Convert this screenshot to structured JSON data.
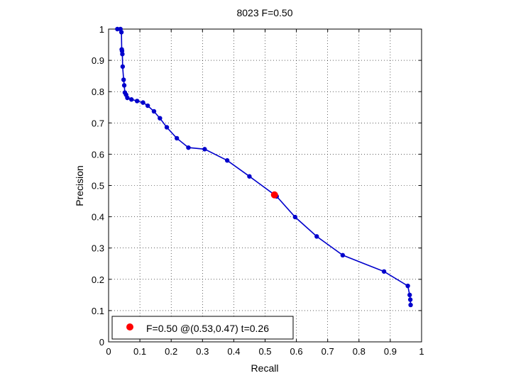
{
  "chart_data": {
    "type": "line",
    "title": "8023 F=0.50",
    "xlabel": "Recall",
    "ylabel": "Precision",
    "xlim": [
      0,
      1
    ],
    "ylim": [
      0,
      1
    ],
    "grid": true,
    "xticks": [
      0,
      0.1,
      0.2,
      0.3,
      0.4,
      0.5,
      0.6,
      0.7,
      0.8,
      0.9,
      1
    ],
    "yticks": [
      0,
      0.1,
      0.2,
      0.3,
      0.4,
      0.5,
      0.6,
      0.7,
      0.8,
      0.9,
      1
    ],
    "xtick_labels": [
      "0",
      "0.1",
      "0.2",
      "0.3",
      "0.4",
      "0.5",
      "0.6",
      "0.7",
      "0.8",
      "0.9",
      "1"
    ],
    "ytick_labels": [
      "0",
      "0.1",
      "0.2",
      "0.3",
      "0.4",
      "0.5",
      "0.6",
      "0.7",
      "0.8",
      "0.9",
      "1"
    ],
    "series": [
      {
        "color": "#0000cc",
        "x": [
          0.028,
          0.038,
          0.041,
          0.042,
          0.043,
          0.044,
          0.045,
          0.048,
          0.05,
          0.052,
          0.056,
          0.06,
          0.073,
          0.091,
          0.11,
          0.125,
          0.145,
          0.164,
          0.186,
          0.218,
          0.255,
          0.307,
          0.379,
          0.45,
          0.537,
          0.596,
          0.665,
          0.748,
          0.88,
          0.956,
          0.962,
          0.964,
          0.965
        ],
        "y": [
          1.0,
          1.0,
          0.99,
          0.935,
          0.93,
          0.92,
          0.88,
          0.838,
          0.82,
          0.797,
          0.79,
          0.78,
          0.775,
          0.77,
          0.765,
          0.755,
          0.737,
          0.715,
          0.686,
          0.651,
          0.621,
          0.616,
          0.58,
          0.529,
          0.465,
          0.399,
          0.337,
          0.277,
          0.225,
          0.179,
          0.15,
          0.135,
          0.118
        ]
      }
    ],
    "marker": {
      "x": 0.53,
      "y": 0.47,
      "color": "#ff0000"
    },
    "legend": {
      "position": "bottom-left",
      "text": "F=0.50 @(0.53,0.47) t=0.26"
    }
  }
}
